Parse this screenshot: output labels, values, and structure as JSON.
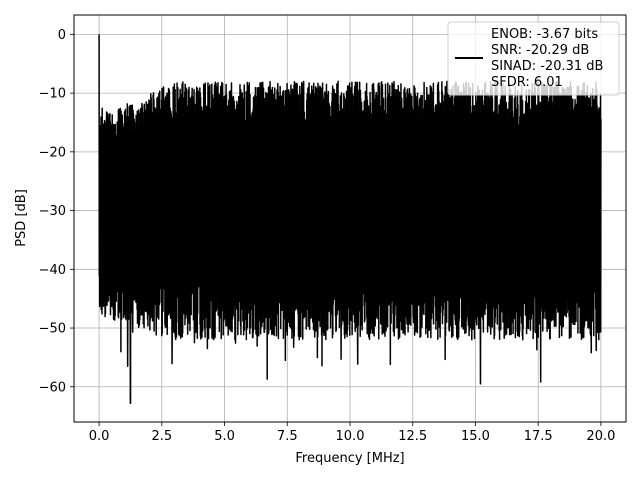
{
  "chart_data": {
    "type": "line",
    "title": "",
    "xlabel": "Frequency [MHz]",
    "ylabel": "PSD [dB]",
    "xlim": [
      -1.0,
      21.0
    ],
    "ylim": [
      -66.0,
      3.3
    ],
    "xticks": [
      0.0,
      2.5,
      5.0,
      7.5,
      10.0,
      12.5,
      15.0,
      17.5,
      20.0
    ],
    "xtick_labels": [
      "0.0",
      "2.5",
      "5.0",
      "7.5",
      "10.0",
      "12.5",
      "15.0",
      "17.5",
      "20.0"
    ],
    "yticks": [
      0,
      -10,
      -20,
      -30,
      -40,
      -50,
      -60
    ],
    "ytick_labels": [
      "0",
      "−10",
      "−20",
      "−30",
      "−40",
      "−50",
      "−60"
    ],
    "grid": true,
    "legend_position": "top-right",
    "series": [
      {
        "name": "ENOB: -3.67 bits\nSNR: -20.29 dB\nSINAD: -20.31 dB\nSFDR: 6.01",
        "color": "#000000",
        "x_range": [
          0.0,
          20.0
        ],
        "peak": {
          "x": 0.0,
          "y": 0.0
        },
        "noise_floor_band": {
          "upper": [
            -20,
            -12
          ],
          "lower": [
            -63,
            -38
          ]
        },
        "notable_dips": [
          {
            "x": 1.25,
            "y": -62.8
          },
          {
            "x": 6.7,
            "y": -58.7
          },
          {
            "x": 15.2,
            "y": -59.5
          },
          {
            "x": 17.6,
            "y": -59.2
          }
        ]
      }
    ],
    "legend_lines": [
      "ENOB: -3.67 bits",
      "SNR: -20.29 dB",
      "SINAD: -20.31 dB",
      "SFDR: 6.01"
    ]
  }
}
